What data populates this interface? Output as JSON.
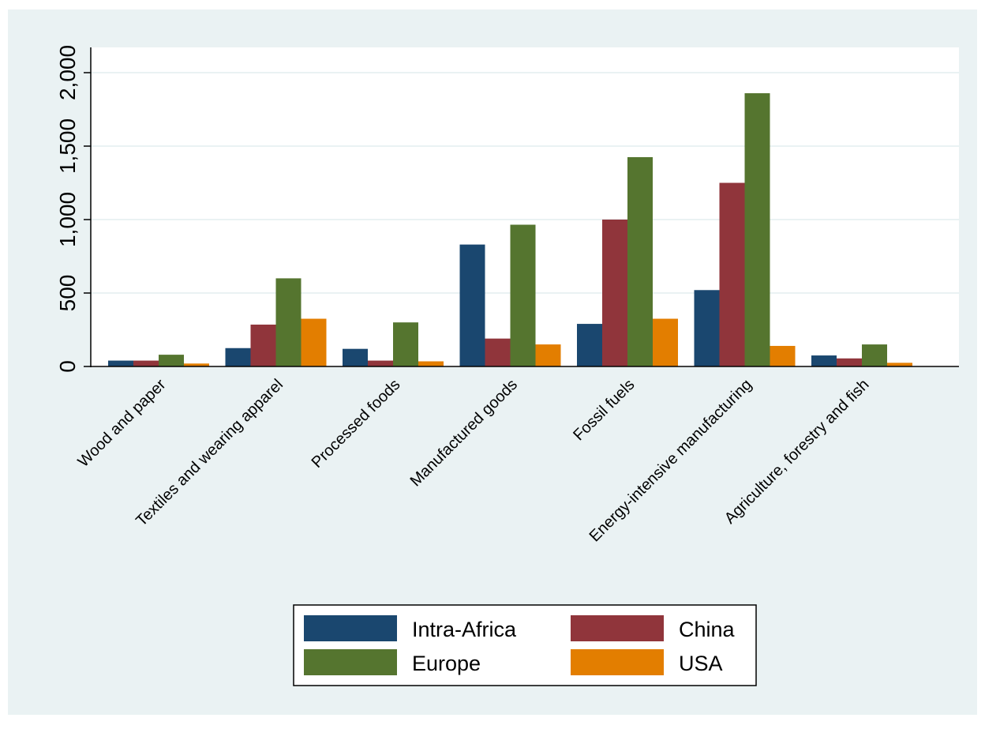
{
  "chart_data": {
    "type": "bar",
    "categories": [
      "Wood and paper",
      "Textiles and wearing apparel",
      "Processed foods",
      "Manufactured goods",
      "Fossil fuels",
      "Energy-intensive manufacturing",
      "Agriculture, forestry and fish"
    ],
    "series": [
      {
        "name": "Intra-Africa",
        "color": "#1a476f",
        "values": [
          40,
          125,
          120,
          830,
          290,
          520,
          75
        ]
      },
      {
        "name": "China",
        "color": "#90353b",
        "values": [
          40,
          285,
          40,
          190,
          1000,
          1250,
          55
        ]
      },
      {
        "name": "Europe",
        "color": "#55752f",
        "values": [
          80,
          600,
          300,
          965,
          1425,
          1860,
          150
        ]
      },
      {
        "name": "USA",
        "color": "#e37e00",
        "values": [
          20,
          325,
          35,
          150,
          325,
          140,
          25
        ]
      }
    ],
    "yticks": [
      0,
      500,
      1000,
      1500,
      2000
    ],
    "ytick_labels": [
      "0",
      "500",
      "1,000",
      "1,500",
      "2,000"
    ],
    "ylim": [
      0,
      2000
    ],
    "title": "",
    "xlabel": "",
    "ylabel": "",
    "grid": true,
    "legend_position": "bottom"
  },
  "colors": {
    "background": "#eaf2f3",
    "plot_background": "#ffffff",
    "gridline": "#eaf2f3",
    "axis": "#000000"
  }
}
